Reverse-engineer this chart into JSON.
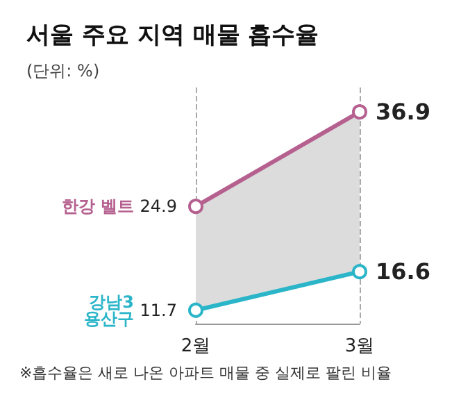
{
  "chart_data": {
    "type": "line",
    "title": "서울 주요 지역 매물 흡수율",
    "subtitle": "(단위: %)",
    "categories": [
      "2월",
      "3월"
    ],
    "series": [
      {
        "name": "한강 벨트",
        "color": "#b5608f",
        "values": [
          24.9,
          36.9
        ],
        "lower": [
          11.7,
          16.6
        ],
        "upper": [
          24.9,
          36.9
        ]
      },
      {
        "name": "강남3\n용산구",
        "color": "#2bb5c9",
        "values": [
          11.7,
          16.6
        ]
      }
    ],
    "data_labels": true,
    "marker": "circle",
    "grid": "x",
    "legend": false,
    "tick_labels": "x",
    "annotations": [
      "※흡수율은 새로 나온 아파트 매물 중 실제로 팔린 비율"
    ]
  }
}
